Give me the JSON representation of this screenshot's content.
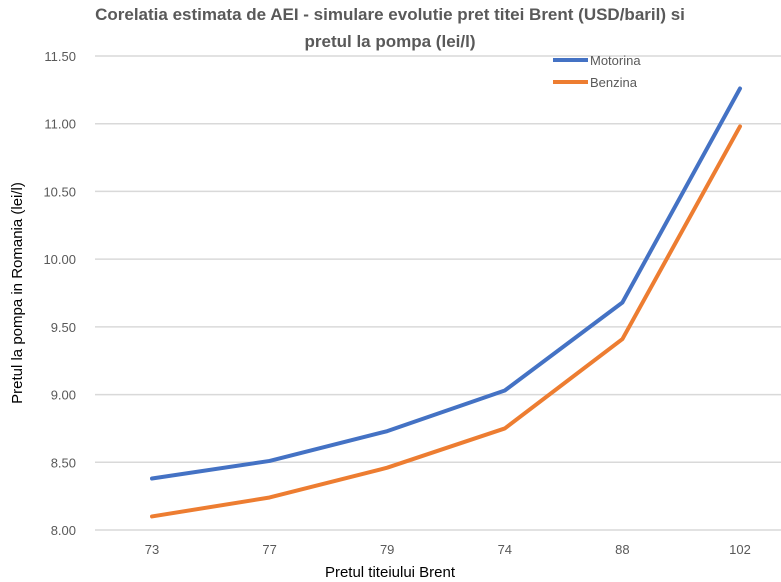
{
  "chart_data": {
    "type": "line",
    "title": "Corelatia estimata de AEI - simulare evolutie pret titei Brent (USD/baril) si pretul la pompa  (lei/l)",
    "title_lines": [
      "Corelatia estimata de AEI - simulare evolutie pret titei Brent (USD/baril) si",
      "pretul la pompa  (lei/l)"
    ],
    "xlabel": "Pretul titeiului Brent",
    "ylabel": "Pretul la pompa in Romania (lei/l)",
    "categories": [
      "73",
      "77",
      "79",
      "74",
      "88",
      "102"
    ],
    "ylim": [
      8.0,
      11.5
    ],
    "yticks": [
      "8.00",
      "8.50",
      "9.00",
      "9.50",
      "10.00",
      "10.50",
      "11.00",
      "11.50"
    ],
    "grid": true,
    "legend_position": "top-right",
    "series": [
      {
        "name": "Motorina",
        "color": "#4472C4",
        "values": [
          8.38,
          8.51,
          8.73,
          9.03,
          9.68,
          11.26
        ]
      },
      {
        "name": "Benzina",
        "color": "#ED7D31",
        "values": [
          8.1,
          8.24,
          8.46,
          8.75,
          9.41,
          10.98
        ]
      }
    ]
  }
}
